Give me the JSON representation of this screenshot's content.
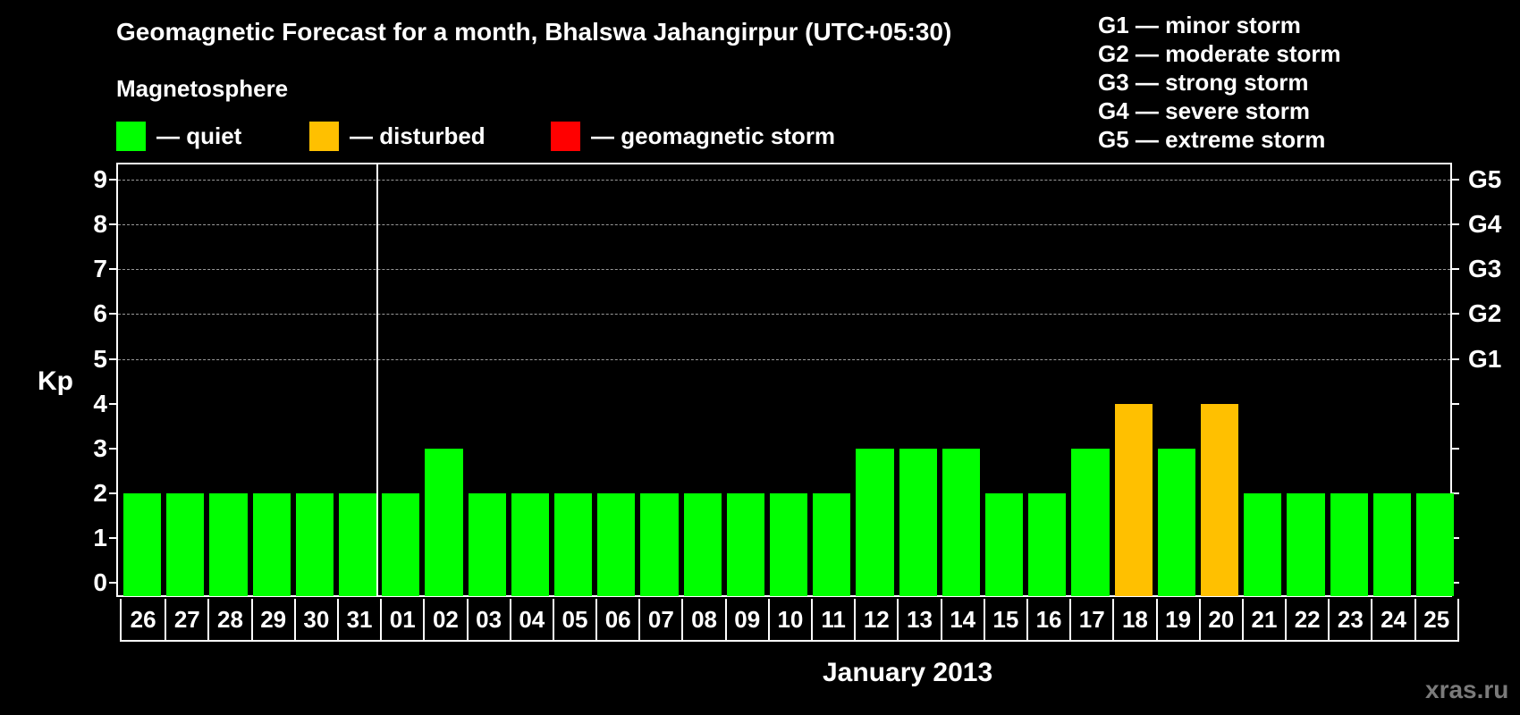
{
  "title": "Geomagnetic Forecast for a month, Bhalswa Jahangirpur (UTC+05:30)",
  "magnetosphere_label": "Magnetosphere",
  "legend": [
    {
      "label": "— quiet",
      "color": "#00ff00"
    },
    {
      "label": "— disturbed",
      "color": "#ffc000"
    },
    {
      "label": "— geomagnetic storm",
      "color": "#ff0000"
    }
  ],
  "storm_levels": [
    "G1 — minor storm",
    "G2 — moderate storm",
    "G3 — strong storm",
    "G4 — severe storm",
    "G5 — extreme storm"
  ],
  "y_axis_label": "Kp",
  "y_ticks": [
    "0",
    "1",
    "2",
    "3",
    "4",
    "5",
    "6",
    "7",
    "8",
    "9"
  ],
  "g_ticks": [
    {
      "label": "G1",
      "kp": 5
    },
    {
      "label": "G2",
      "kp": 6
    },
    {
      "label": "G3",
      "kp": 7
    },
    {
      "label": "G4",
      "kp": 8
    },
    {
      "label": "G5",
      "kp": 9
    }
  ],
  "month_label": "January 2013",
  "watermark": "xras.ru",
  "chart_data": {
    "type": "bar",
    "title": "Geomagnetic Forecast for a month, Bhalswa Jahangirpur (UTC+05:30)",
    "xlabel": "January 2013",
    "ylabel": "Kp",
    "ylim": [
      0,
      9
    ],
    "grid": true,
    "categories": [
      "26",
      "27",
      "28",
      "29",
      "30",
      "31",
      "01",
      "02",
      "03",
      "04",
      "05",
      "06",
      "07",
      "08",
      "09",
      "10",
      "11",
      "12",
      "13",
      "14",
      "15",
      "16",
      "17",
      "18",
      "19",
      "20",
      "21",
      "22",
      "23",
      "24",
      "25"
    ],
    "values": [
      2,
      2,
      2,
      2,
      2,
      2,
      2,
      3,
      2,
      2,
      2,
      2,
      2,
      2,
      2,
      2,
      2,
      3,
      3,
      3,
      2,
      2,
      3,
      4,
      3,
      4,
      2,
      2,
      2,
      2,
      2
    ],
    "status": [
      "quiet",
      "quiet",
      "quiet",
      "quiet",
      "quiet",
      "quiet",
      "quiet",
      "quiet",
      "quiet",
      "quiet",
      "quiet",
      "quiet",
      "quiet",
      "quiet",
      "quiet",
      "quiet",
      "quiet",
      "quiet",
      "quiet",
      "quiet",
      "quiet",
      "quiet",
      "quiet",
      "disturbed",
      "quiet",
      "disturbed",
      "quiet",
      "quiet",
      "quiet",
      "quiet",
      "quiet"
    ],
    "status_colors": {
      "quiet": "#00ff00",
      "disturbed": "#ffc000",
      "storm": "#ff0000"
    },
    "legend": [
      "quiet",
      "disturbed",
      "geomagnetic storm"
    ],
    "right_axis": {
      "G1": 5,
      "G2": 6,
      "G3": 7,
      "G4": 8,
      "G5": 9
    }
  }
}
